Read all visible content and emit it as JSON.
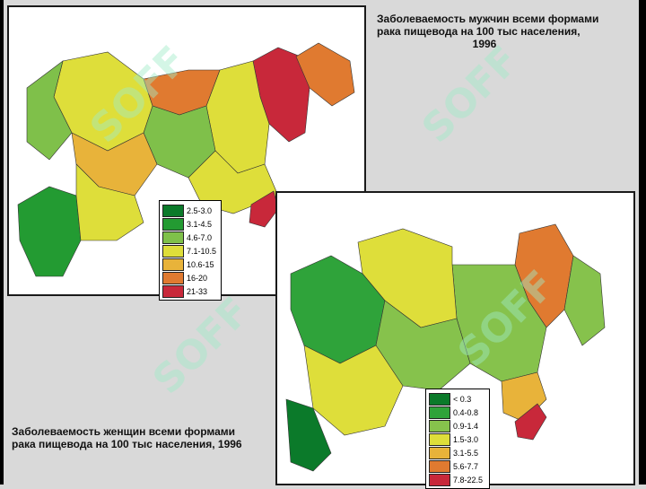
{
  "watermark": "SOFF",
  "map_top": {
    "title_line1": "Заболеваемость мужчин всеми формами",
    "title_line2": "рака пищевода на 100 тыс населения,",
    "title_line3": "1996",
    "legend": [
      {
        "label": "2.5-3.0",
        "color": "#0b7a2a"
      },
      {
        "label": "3.1-4.5",
        "color": "#239b32"
      },
      {
        "label": "4.6-7.0",
        "color": "#7fc04a"
      },
      {
        "label": "7.1-10.5",
        "color": "#dede3a"
      },
      {
        "label": "10.6-15",
        "color": "#e8b33a"
      },
      {
        "label": "16-20",
        "color": "#e07a30"
      },
      {
        "label": "21-33",
        "color": "#c8283a"
      }
    ]
  },
  "map_bottom": {
    "title_line1": "Заболеваемость женщин всеми формами",
    "title_line2": "рака пищевода на 100 тыс населения, 1996",
    "legend": [
      {
        "label": "< 0.3",
        "color": "#0b7a2a"
      },
      {
        "label": "0.4-0.8",
        "color": "#2fa33a"
      },
      {
        "label": "0.9-1.4",
        "color": "#86c24c"
      },
      {
        "label": "1.5-3.0",
        "color": "#dede3a"
      },
      {
        "label": "3.1-5.5",
        "color": "#e8b33a"
      },
      {
        "label": "5.6-7.7",
        "color": "#e07a30"
      },
      {
        "label": "7.8-22.5",
        "color": "#c8283a"
      }
    ]
  }
}
